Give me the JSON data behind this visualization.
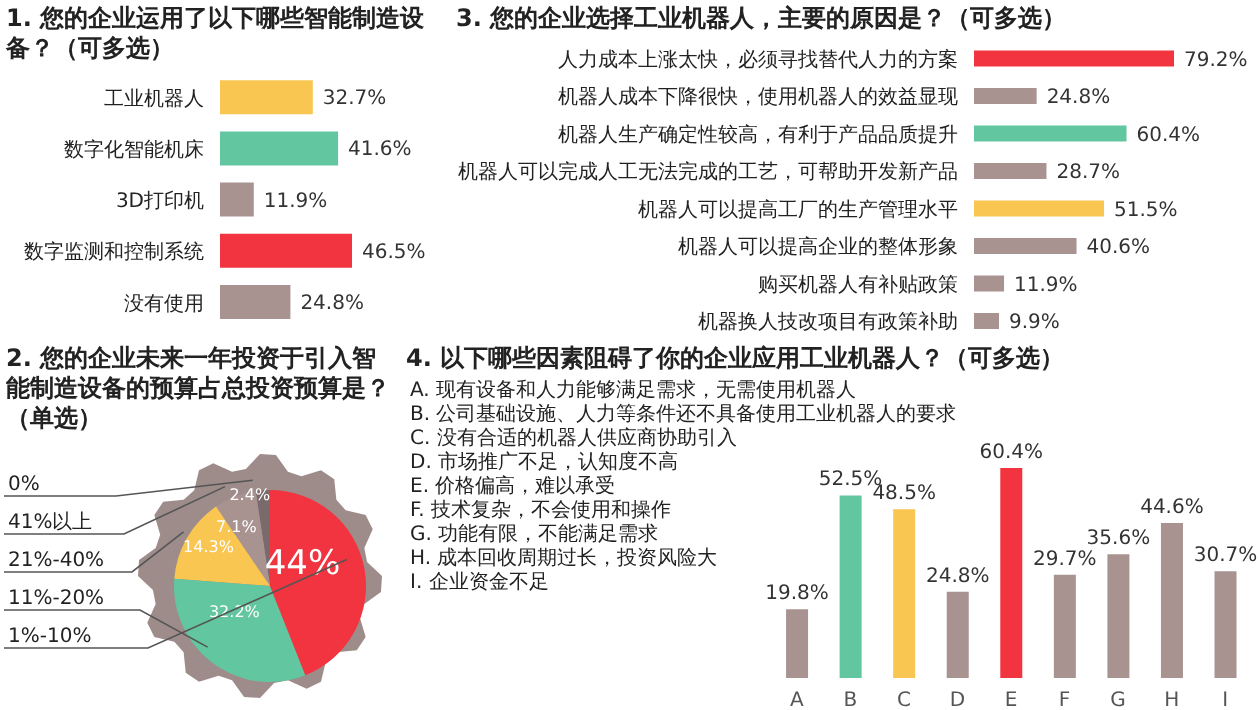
{
  "chart_data": [
    {
      "type": "bar",
      "orientation": "horizontal",
      "title": "1. 您的企业运用了以下哪些智能制造设备？（可多选）",
      "categories": [
        "工业机器人",
        "数字化智能机床",
        "3D打印机",
        "数字监测和控制系统",
        "没有使用"
      ],
      "values": [
        32.7,
        41.6,
        11.9,
        46.5,
        24.8
      ],
      "value_labels": [
        "32.7%",
        "41.6%",
        "11.9%",
        "46.5%",
        "24.8%"
      ],
      "colors": [
        "#f9c651",
        "#62c6a0",
        "#a89391",
        "#f1343f",
        "#a89391"
      ],
      "legend": false,
      "grid": false
    },
    {
      "type": "bar",
      "orientation": "horizontal",
      "title": "3. 您的企业选择工业机器人，主要的原因是？（可多选）",
      "categories": [
        "人力成本上涨太快，必须寻找替代人力的方案",
        "机器人成本下降很快，使用机器人的效益显现",
        "机器人生产确定性较高，有利于产品品质提升",
        "机器人可以完成人工无法完成的工艺，可帮助开发新产品",
        "机器人可以提高工厂的生产管理水平",
        "机器人可以提高企业的整体形象",
        "购买机器人有补贴政策",
        "机器换人技改项目有政策补助"
      ],
      "values": [
        79.2,
        24.8,
        60.4,
        28.7,
        51.5,
        40.6,
        11.9,
        9.9
      ],
      "value_labels": [
        "79.2%",
        "24.8%",
        "60.4%",
        "28.7%",
        "51.5%",
        "40.6%",
        "11.9%",
        "9.9%"
      ],
      "colors": [
        "#f1343f",
        "#a89391",
        "#62c6a0",
        "#a89391",
        "#f9c651",
        "#a89391",
        "#a89391",
        "#a89391"
      ],
      "legend": false,
      "grid": false
    },
    {
      "type": "pie",
      "title": "2. 您的企业未来一年投资于引入智能制造设备的预算占总投资预算是？（单选）",
      "categories": [
        "0%",
        "41%以上",
        "21%-40%",
        "11%-20%",
        "1%-10%"
      ],
      "values": [
        2.4,
        7.1,
        14.3,
        32.2,
        44
      ],
      "value_labels": [
        "2.4%",
        "7.1%",
        "14.3%",
        "32.2%",
        "44%"
      ],
      "colors": [
        "#7a6a6c",
        "#a89391",
        "#f9c651",
        "#62c6a0",
        "#f1343f"
      ],
      "legend": false
    },
    {
      "type": "bar",
      "title": "4. 以下哪些因素阻碍了你的企业应用工业机器人？（可多选）",
      "categories": [
        "A",
        "B",
        "C",
        "D",
        "E",
        "F",
        "G",
        "H",
        "I"
      ],
      "values": [
        19.8,
        52.5,
        48.5,
        24.8,
        60.4,
        29.7,
        35.6,
        44.6,
        30.7
      ],
      "value_labels": [
        "19.8%",
        "52.5%",
        "48.5%",
        "24.8%",
        "60.4%",
        "29.7%",
        "35.6%",
        "44.6%",
        "30.7%"
      ],
      "colors": [
        "#a89391",
        "#62c6a0",
        "#f9c651",
        "#a89391",
        "#f1343f",
        "#a89391",
        "#a89391",
        "#a89391",
        "#a89391"
      ],
      "legend": false,
      "grid": false,
      "annotations": [
        "A. 现有设备和人力能够满足需求，无需使用机器人",
        "B. 公司基础设施、人力等条件还不具备使用工业机器人的要求",
        "C. 没有合适的机器人供应商协助引入",
        "D. 市场推广不足，认知度不高",
        "E. 价格偏高，难以承受",
        "F. 技术复杂，不会使用和操作",
        "G. 功能有限，不能满足需求",
        "H. 成本回收周期过长，投资风险大",
        "I. 企业资金不足"
      ]
    }
  ]
}
